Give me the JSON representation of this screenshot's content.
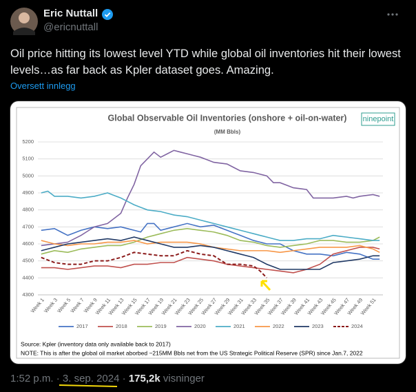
{
  "tweet": {
    "name": "Eric Nuttall",
    "handle": "@ericnuttall",
    "text": "Oil price hitting its lowest level YTD while global oil inventories hit their lowest levels…as far back as Kpler dataset goes. Amazing.",
    "translate": "Oversett innlegg",
    "footer": {
      "time": "1:52 p.m.",
      "separator": "·",
      "date": "3. sep. 2024",
      "views": "175,2k",
      "views_label": "visninger"
    }
  },
  "chart_data": {
    "type": "line",
    "title": "Global Observable Oil Inventories (onshore + oil-on-water)",
    "subtitle": "(MM Bbls)",
    "logo": "ninepoint",
    "source": "Source: Kpler (inventory data only available back to 2017)",
    "note": "NOTE: This is after the global oil market aborbed ~215MM Bbls net from the US Strategic Political Reserve (SPR) since Jan.7, 2022",
    "categories": [
      "Week 1",
      null,
      "Week 3",
      null,
      "Week 5",
      null,
      "Week 7",
      null,
      "Week 9",
      null,
      "Week 11",
      null,
      "Week 13",
      null,
      "Week 15",
      null,
      "Week 17",
      null,
      "Week 19",
      null,
      "Week 21",
      null,
      "Week 23",
      null,
      "Week 25",
      null,
      "Week 27",
      null,
      "Week 29",
      null,
      "Week 31",
      null,
      "Week 33",
      null,
      "Week 35",
      null,
      "Week 37",
      null,
      "Week 39",
      null,
      "Week 41",
      null,
      "Week 43",
      null,
      "Week 45",
      null,
      "Week 47",
      null,
      "Week 49",
      null,
      "Week 51",
      null
    ],
    "ylim": [
      4300,
      5200
    ],
    "yticks": [
      4300,
      4400,
      4500,
      4600,
      4700,
      4800,
      4900,
      5000,
      5100,
      5200
    ],
    "grid": true,
    "legend": "bottom",
    "series": [
      {
        "name": "2017",
        "color": "#4472c4",
        "values": [
          4680,
          4685,
          4690,
          4670,
          4650,
          4665,
          4680,
          4690,
          4700,
          4695,
          4690,
          4695,
          4700,
          4690,
          4680,
          4670,
          4720,
          4720,
          4680,
          4690,
          4700,
          4710,
          4720,
          4710,
          4700,
          4705,
          4710,
          4695,
          4680,
          4665,
          4650,
          4635,
          4620,
          4610,
          4600,
          4600,
          4600,
          4580,
          4560,
          4550,
          4540,
          4540,
          4540,
          4535,
          4530,
          4540,
          4550,
          4545,
          4540,
          4525,
          4510,
          4510
        ]
      },
      {
        "name": "2018",
        "color": "#c0504d",
        "values": [
          4460,
          4460,
          4460,
          4455,
          4450,
          4455,
          4460,
          4465,
          4470,
          4470,
          4470,
          4465,
          4460,
          4470,
          4480,
          4480,
          4480,
          4485,
          4490,
          4490,
          4490,
          4505,
          4520,
          4515,
          4510,
          4505,
          4500,
          4490,
          4480,
          4475,
          4470,
          4465,
          4460,
          4455,
          4450,
          4445,
          4440,
          4435,
          4430,
          4440,
          4450,
          4465,
          4480,
          4510,
          4540,
          4550,
          4560,
          4570,
          4580,
          4580,
          4580,
          4570
        ]
      },
      {
        "name": "2019",
        "color": "#9bbb59",
        "values": [
          4540,
          4550,
          4560,
          4555,
          4550,
          4560,
          4570,
          4575,
          4580,
          4585,
          4590,
          4590,
          4590,
          4600,
          4610,
          4625,
          4640,
          4650,
          4660,
          4670,
          4680,
          4685,
          4690,
          4685,
          4680,
          4675,
          4670,
          4660,
          4650,
          4635,
          4620,
          4615,
          4610,
          4600,
          4590,
          4585,
          4580,
          4585,
          4590,
          4595,
          4600,
          4610,
          4620,
          4620,
          4620,
          4615,
          4610,
          4610,
          4610,
          4615,
          4620,
          4640
        ]
      },
      {
        "name": "2020",
        "color": "#8064a2",
        "values": [
          4590,
          4595,
          4600,
          4605,
          4610,
          4630,
          4650,
          4675,
          4700,
          4710,
          4720,
          4750,
          4780,
          4870,
          4950,
          5060,
          5100,
          5140,
          5110,
          5130,
          5150,
          5140,
          5130,
          5120,
          5110,
          5095,
          5080,
          5075,
          5070,
          5050,
          5030,
          5025,
          5020,
          5010,
          5000,
          4960,
          4960,
          4945,
          4930,
          4925,
          4920,
          4870,
          4870,
          4870,
          4870,
          4875,
          4880,
          4870,
          4880,
          4885,
          4890,
          4880
        ]
      },
      {
        "name": "2021",
        "color": "#4bacc6",
        "values": [
          4900,
          4910,
          4880,
          4880,
          4880,
          4875,
          4870,
          4875,
          4880,
          4890,
          4900,
          4885,
          4870,
          4850,
          4830,
          4815,
          4800,
          4795,
          4790,
          4780,
          4770,
          4765,
          4760,
          4750,
          4740,
          4730,
          4720,
          4710,
          4700,
          4690,
          4680,
          4670,
          4660,
          4650,
          4640,
          4630,
          4620,
          4620,
          4620,
          4625,
          4630,
          4630,
          4630,
          4640,
          4650,
          4645,
          4640,
          4635,
          4630,
          4625,
          4620,
          4620
        ]
      },
      {
        "name": "2022",
        "color": "#f79646",
        "values": [
          4620,
          4610,
          4600,
          4595,
          4590,
          4595,
          4600,
          4600,
          4600,
          4605,
          4610,
          4610,
          4610,
          4615,
          4620,
          4610,
          4600,
          4605,
          4610,
          4610,
          4610,
          4610,
          4610,
          4605,
          4600,
          4590,
          4580,
          4575,
          4570,
          4565,
          4560,
          4560,
          4560,
          4560,
          4560,
          4555,
          4550,
          4555,
          4560,
          4565,
          4570,
          4575,
          4580,
          4580,
          4580,
          4580,
          4580,
          4585,
          4590,
          4580,
          4570,
          4550
        ]
      },
      {
        "name": "2023",
        "color": "#1f3864",
        "values": [
          4560,
          4570,
          4580,
          4590,
          4600,
          4605,
          4610,
          4615,
          4620,
          4625,
          4630,
          4625,
          4620,
          4630,
          4640,
          4630,
          4620,
          4610,
          4600,
          4590,
          4580,
          4580,
          4580,
          4585,
          4590,
          4585,
          4580,
          4570,
          4560,
          4550,
          4540,
          4530,
          4520,
          4500,
          4480,
          4465,
          4450,
          4450,
          4450,
          4450,
          4450,
          4450,
          4450,
          4470,
          4490,
          4495,
          4500,
          4505,
          4510,
          4520,
          4530,
          4530
        ]
      },
      {
        "name": "2024",
        "color": "#8b1a1a",
        "dashed": true,
        "values": [
          4520,
          4505,
          4490,
          4485,
          4480,
          4480,
          4480,
          4490,
          4500,
          4500,
          4500,
          4510,
          4520,
          4535,
          4550,
          4545,
          4540,
          4535,
          4530,
          4530,
          4530,
          4545,
          4560,
          4550,
          4540,
          4535,
          4530,
          4505,
          4480,
          4480,
          4480,
          4475,
          4470,
          4440,
          4400,
          null,
          null,
          null,
          null,
          null,
          null,
          null,
          null,
          null,
          null,
          null,
          null,
          null,
          null,
          null,
          null,
          null
        ]
      }
    ]
  }
}
